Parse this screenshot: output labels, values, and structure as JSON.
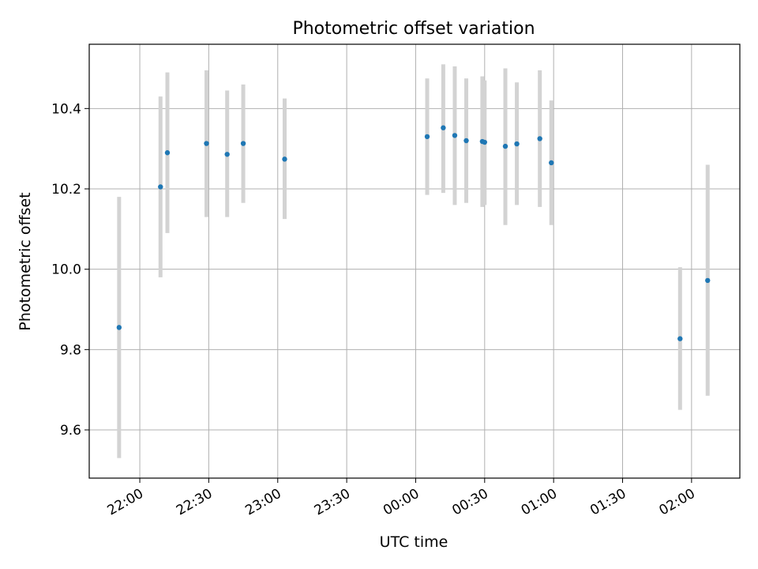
{
  "chart_data": {
    "type": "scatter",
    "title": "Photometric offset variation",
    "xlabel": "UTC time",
    "ylabel": "Photometric offset",
    "grid": true,
    "x_ticks": [
      "22:00",
      "22:30",
      "23:00",
      "23:30",
      "00:00",
      "00:30",
      "01:00",
      "01:30",
      "02:00"
    ],
    "y_ticks": [
      "9.6",
      "9.8",
      "10.0",
      "10.2",
      "10.4"
    ],
    "xlim": [
      "21:38",
      "02:21"
    ],
    "ylim": [
      9.48,
      10.56
    ],
    "colors": {
      "point": "#1f77b4",
      "errorbar": "#d3d3d3",
      "grid": "#b0b0b0"
    },
    "series": [
      {
        "points": [
          {
            "x": "21:51",
            "y": 9.855,
            "lower": 9.53,
            "upper": 10.18
          },
          {
            "x": "22:09",
            "y": 10.205,
            "lower": 9.98,
            "upper": 10.43
          },
          {
            "x": "22:12",
            "y": 10.29,
            "lower": 10.09,
            "upper": 10.49
          },
          {
            "x": "22:29",
            "y": 10.313,
            "lower": 10.13,
            "upper": 10.495
          },
          {
            "x": "22:38",
            "y": 10.286,
            "lower": 10.13,
            "upper": 10.445
          },
          {
            "x": "22:45",
            "y": 10.313,
            "lower": 10.165,
            "upper": 10.46
          },
          {
            "x": "23:03",
            "y": 10.274,
            "lower": 10.125,
            "upper": 10.425
          },
          {
            "x": "00:05",
            "y": 10.33,
            "lower": 10.185,
            "upper": 10.475
          },
          {
            "x": "00:12",
            "y": 10.352,
            "lower": 10.19,
            "upper": 10.51
          },
          {
            "x": "00:17",
            "y": 10.333,
            "lower": 10.16,
            "upper": 10.505
          },
          {
            "x": "00:22",
            "y": 10.32,
            "lower": 10.165,
            "upper": 10.475
          },
          {
            "x": "00:29",
            "y": 10.318,
            "lower": 10.155,
            "upper": 10.48
          },
          {
            "x": "00:30",
            "y": 10.316,
            "lower": 10.16,
            "upper": 10.47
          },
          {
            "x": "00:39",
            "y": 10.306,
            "lower": 10.11,
            "upper": 10.5
          },
          {
            "x": "00:44",
            "y": 10.312,
            "lower": 10.16,
            "upper": 10.465
          },
          {
            "x": "00:54",
            "y": 10.325,
            "lower": 10.155,
            "upper": 10.495
          },
          {
            "x": "00:59",
            "y": 10.265,
            "lower": 10.11,
            "upper": 10.42
          },
          {
            "x": "01:55",
            "y": 9.827,
            "lower": 9.65,
            "upper": 10.005
          },
          {
            "x": "02:07",
            "y": 9.972,
            "lower": 9.685,
            "upper": 10.26
          }
        ]
      }
    ]
  }
}
